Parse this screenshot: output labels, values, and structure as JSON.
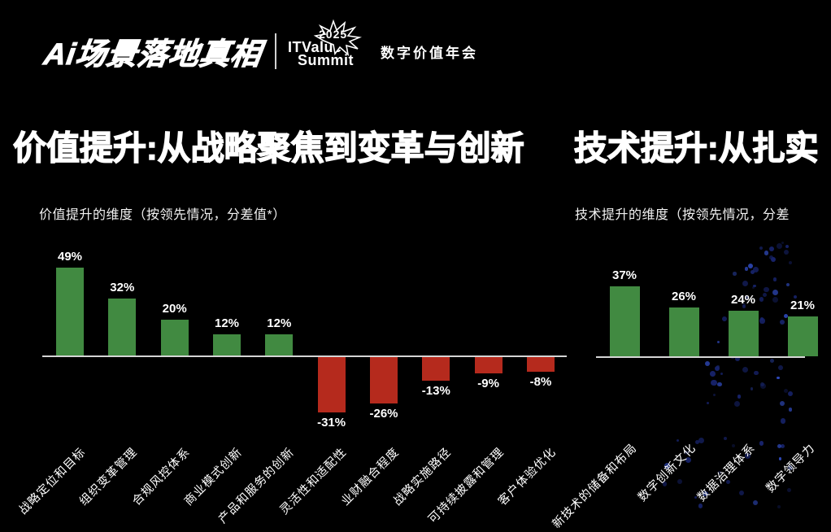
{
  "brand": {
    "wordmark": "Ai场景落地真相",
    "itvalue_line1": "ITValue",
    "itvalue_line2": "Summit",
    "year": "2025",
    "event": "数字价值年会"
  },
  "panels": {
    "left": {
      "headline": "价值提升:从战略聚焦到变革与创新",
      "subtitle": "价值提升的维度（按领先情况，分差值*）"
    },
    "right": {
      "headline": "技术提升:从扎实",
      "subtitle": "技术提升的维度（按领先情况，分差"
    }
  },
  "chart_data": [
    {
      "type": "bar",
      "title": "价值提升的维度（按领先情况，分差值*）",
      "categories": [
        "战略定位和目标",
        "组织变革管理",
        "合规风控体系",
        "商业模式创新",
        "产品和服务的创新",
        "灵活性和适配性",
        "业财融合程度",
        "战略实施路径",
        "可持续披露和管理",
        "客户体验优化"
      ],
      "values": [
        49,
        32,
        20,
        12,
        12,
        -31,
        -26,
        -13,
        -9,
        -8
      ],
      "value_labels": [
        "49%",
        "32%",
        "20%",
        "12%",
        "12%",
        "-31%",
        "-26%",
        "-13%",
        "-9%",
        "-8%"
      ],
      "positive_color": "#418a41",
      "negative_color": "#b52a1d",
      "axis_color": "#d5d5d5",
      "ylim": [
        -35,
        55
      ],
      "grid": false,
      "legend": false,
      "category_rotation_deg": -45
    },
    {
      "type": "bar",
      "title": "技术提升的维度（按领先情况，分差",
      "categories": [
        "新技术的储备和布局",
        "数字创新文化",
        "数据治理体系",
        "数字领导力"
      ],
      "values": [
        37,
        26,
        24,
        21
      ],
      "value_labels": [
        "37%",
        "26%",
        "24%",
        "21%"
      ],
      "positive_color": "#418a41",
      "negative_color": "#b52a1d",
      "axis_color": "#d5d5d5",
      "ylim": [
        0,
        45
      ],
      "grid": false,
      "legend": false,
      "category_rotation_deg": -45
    }
  ],
  "decor": {
    "dot_color_dark": "#17236b",
    "dot_color_bright": "#2d47b5"
  }
}
